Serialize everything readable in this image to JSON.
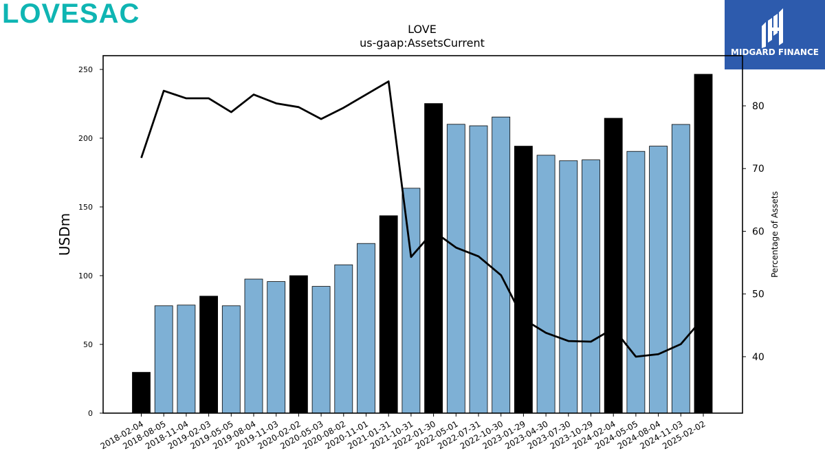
{
  "brand": {
    "logo_text": "LOVESAC",
    "color": "#0fb5b3"
  },
  "badge": {
    "text": "MIDGARD FINANCE",
    "color": "#2d5bad"
  },
  "colors": {
    "bar_default": "#7eb0d5",
    "bar_highlight": "#000000",
    "line": "#000000"
  },
  "chart_data": {
    "type": "bar",
    "title": "LOVE",
    "subtitle": "us-gaap:AssetsCurrent",
    "ylabel": "USDm",
    "y2label": "Percentage of Assets",
    "ylim": [
      0,
      260
    ],
    "y2lim": [
      31,
      88
    ],
    "yticks": [
      0,
      50,
      100,
      150,
      200,
      250
    ],
    "y2ticks": [
      40,
      50,
      60,
      70,
      80
    ],
    "categories": [
      "2018-02-04",
      "2018-08-05",
      "2018-11-04",
      "2019-02-03",
      "2019-05-05",
      "2019-08-04",
      "2019-11-03",
      "2020-02-02",
      "2020-05-03",
      "2020-08-02",
      "2020-11-01",
      "2021-01-31",
      "2021-10-31",
      "2022-01-30",
      "2022-05-01",
      "2022-07-31",
      "2022-10-30",
      "2023-01-29",
      "2023-04-30",
      "2023-07-30",
      "2023-10-29",
      "2024-02-04",
      "2024-05-05",
      "2024-08-04",
      "2024-11-03",
      "2025-02-02"
    ],
    "series": [
      {
        "type": "bar",
        "values": [
          29.7,
          78.1,
          78.6,
          85.1,
          78.1,
          97.5,
          95.7,
          100.0,
          92.2,
          107.9,
          123.4,
          143.6,
          163.6,
          225.2,
          210.1,
          209.0,
          215.4,
          194.2,
          187.6,
          183.6,
          184.2,
          214.5,
          190.4,
          194.2,
          210.0,
          246.5
        ],
        "highlight": [
          true,
          false,
          false,
          true,
          false,
          false,
          false,
          true,
          false,
          false,
          false,
          true,
          false,
          true,
          false,
          false,
          false,
          true,
          false,
          false,
          false,
          true,
          false,
          false,
          false,
          true
        ]
      },
      {
        "type": "line",
        "axis": "right",
        "values": [
          71.7,
          82.4,
          81.2,
          81.2,
          79.0,
          81.8,
          80.4,
          79.8,
          77.9,
          79.7,
          81.8,
          83.9,
          55.9,
          60.0,
          57.4,
          56.0,
          53.0,
          46.0,
          43.8,
          42.5,
          42.4,
          44.5,
          40.0,
          40.4,
          42.0,
          46.2
        ]
      }
    ]
  }
}
